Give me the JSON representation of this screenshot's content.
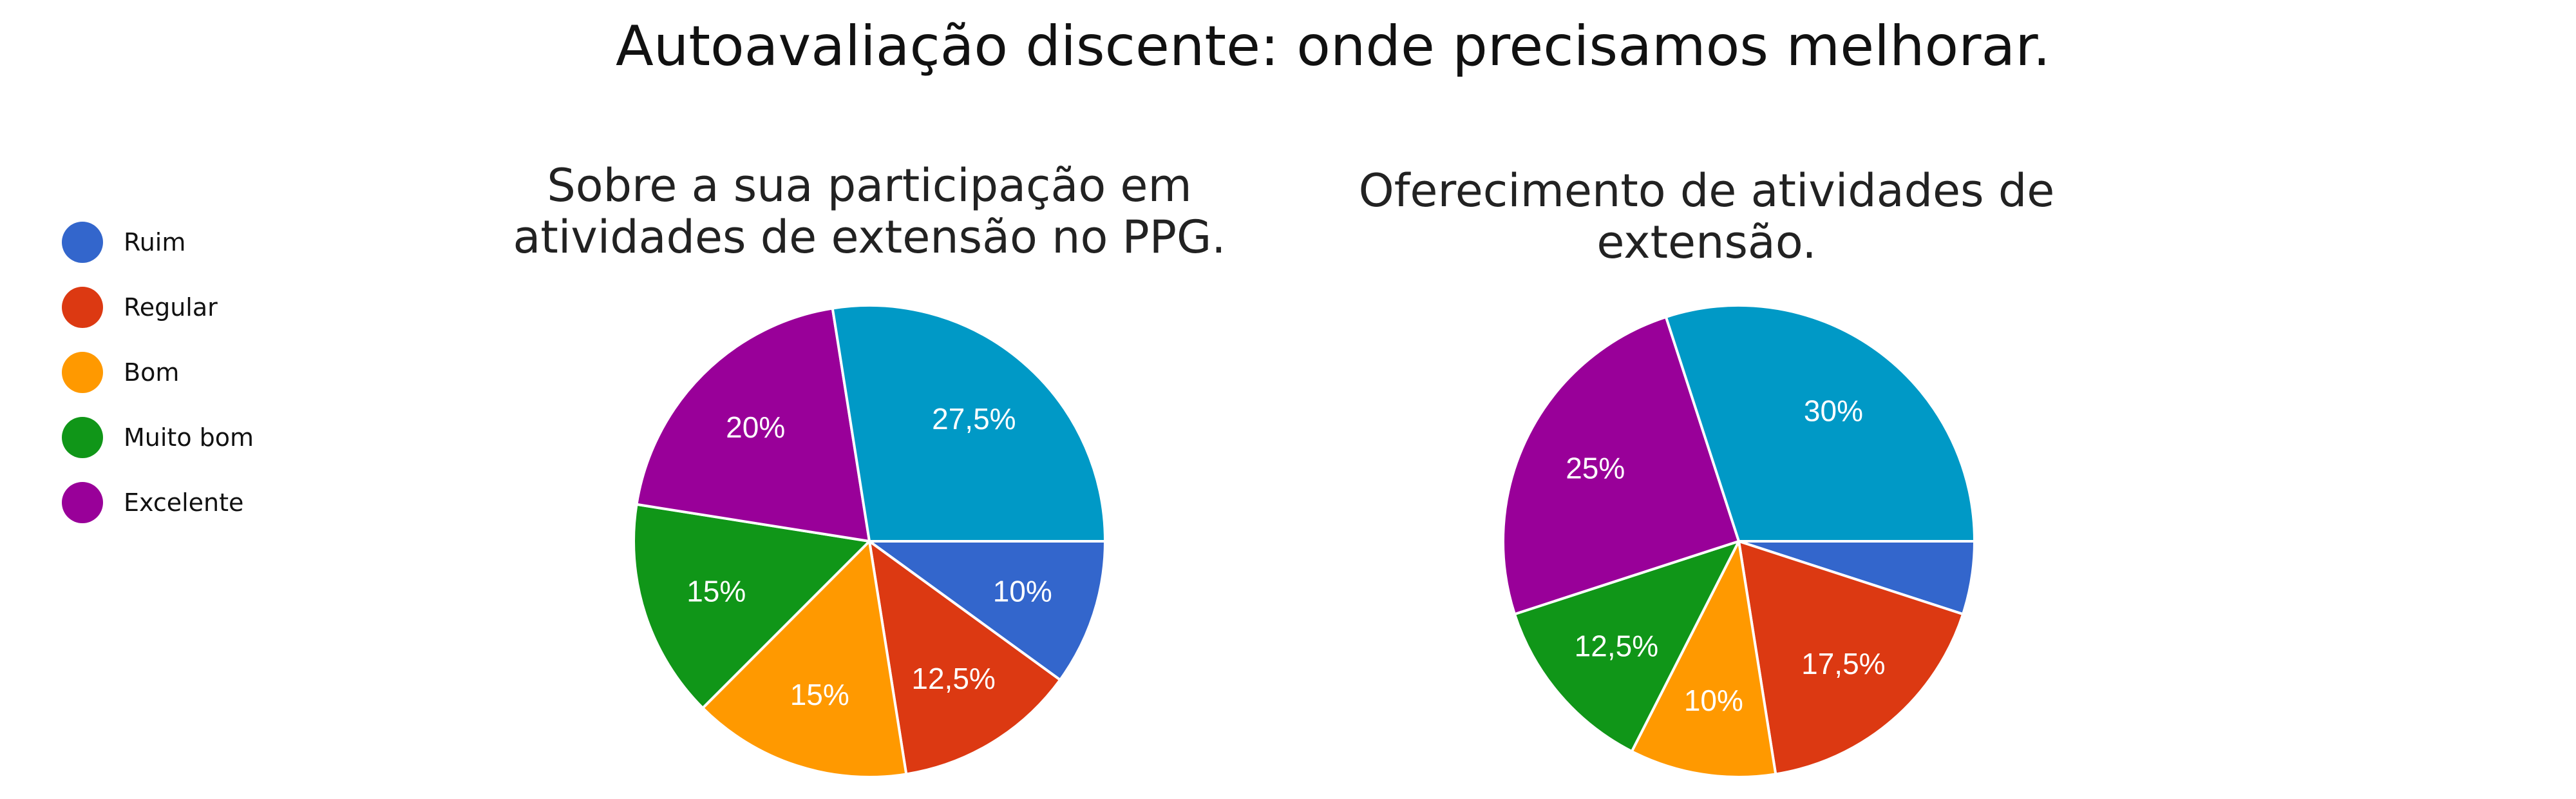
{
  "title": "Autoavaliação discente: onde precisamos melhorar.",
  "legend": [
    {
      "label": "Ruim",
      "color": "#3366cc"
    },
    {
      "label": "Regular",
      "color": "#dc3912"
    },
    {
      "label": "Bom",
      "color": "#ff9900"
    },
    {
      "label": "Muito bom",
      "color": "#109618"
    },
    {
      "label": "Excelente",
      "color": "#990099"
    }
  ],
  "chart_data": [
    {
      "type": "pie",
      "title": "Sobre a sua participação em atividades de extensão no PPG.",
      "title_lines": [
        "Sobre a sua participação em",
        "atividades de extensão no PPG."
      ],
      "slices": [
        {
          "label": "Ruim",
          "value": 10,
          "text": "10%",
          "color": "#3366cc"
        },
        {
          "label": "Regular",
          "value": 12.5,
          "text": "12,5%",
          "color": "#dc3912"
        },
        {
          "label": "Bom",
          "value": 15,
          "text": "15%",
          "color": "#ff9900"
        },
        {
          "label": "Muito bom",
          "value": 15,
          "text": "15%",
          "color": "#109618"
        },
        {
          "label": "Excelente",
          "value": 20,
          "text": "20%",
          "color": "#990099"
        },
        {
          "label": "",
          "value": 27.5,
          "text": "27,5%",
          "color": "#0099c6"
        }
      ]
    },
    {
      "type": "pie",
      "title": "Oferecimento de atividades de extensão.",
      "title_lines": [
        "Oferecimento de atividades de",
        "extensão."
      ],
      "slices": [
        {
          "label": "Ruim",
          "value": 5,
          "text": "",
          "color": "#3366cc"
        },
        {
          "label": "Regular",
          "value": 17.5,
          "text": "17,5%",
          "color": "#dc3912"
        },
        {
          "label": "Bom",
          "value": 10,
          "text": "10%",
          "color": "#ff9900"
        },
        {
          "label": "Muito bom",
          "value": 12.5,
          "text": "12,5%",
          "color": "#109618"
        },
        {
          "label": "Excelente",
          "value": 25,
          "text": "25%",
          "color": "#990099"
        },
        {
          "label": "",
          "value": 30,
          "text": "30%",
          "color": "#0099c6"
        }
      ]
    }
  ]
}
